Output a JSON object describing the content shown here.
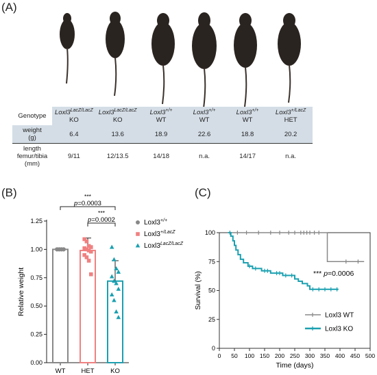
{
  "panels": {
    "a": "(A)",
    "b": "(B)",
    "c": "(C)"
  },
  "colors": {
    "wt": "#888888",
    "het": "#f08080",
    "ko": "#1aa0b0",
    "table_header": "#d4dde6",
    "mouse_body": "#2a2420"
  },
  "table": {
    "corner": "Genotype",
    "columns": [
      {
        "gene": "Loxl3",
        "sup": "LacZ/LacZ",
        "label": "KO"
      },
      {
        "gene": "Loxl3",
        "sup": "LacZ/LacZ",
        "label": "KO"
      },
      {
        "gene": "Loxl3",
        "sup": "+/+",
        "label": "WT"
      },
      {
        "gene": "Loxl3",
        "sup": "+/+",
        "label": "WT"
      },
      {
        "gene": "Loxl3",
        "sup": "+/+",
        "label": "WT"
      },
      {
        "gene": "Loxl3",
        "sup": "+/LacZ",
        "label": "HET"
      }
    ],
    "weight": {
      "label_1": "weight",
      "label_2": "(g)",
      "values": [
        "6.4",
        "13.6",
        "18.9",
        "22.6",
        "18.8",
        "20.2"
      ]
    },
    "length": {
      "label_1": "length",
      "label_2": "femur/tibia",
      "label_3": "(mm)",
      "values": [
        "9/11",
        "12/13.5",
        "14/18",
        "n.a.",
        "14/17",
        "n.a."
      ]
    }
  },
  "chart_data": [
    {
      "type": "bar",
      "ylabel": "Relative weight",
      "ylim": [
        0,
        1.25
      ],
      "yticks": [
        "0.00",
        "0.25",
        "0.50",
        "0.75",
        "1.00",
        "1.25"
      ],
      "categories": [
        "WT",
        "HET",
        "KO"
      ],
      "means": [
        1.0,
        0.99,
        0.72
      ],
      "sd": [
        0.0,
        0.11,
        0.18
      ],
      "points": {
        "WT": [
          1.0,
          1.0,
          1.0,
          1.0,
          1.0,
          1.0,
          1.0,
          1.0,
          1.0,
          1.0,
          1.0,
          1.0
        ],
        "HET": [
          1.09,
          1.07,
          1.03,
          1.02,
          1.01,
          1.0,
          0.99,
          0.98,
          0.95,
          0.93,
          0.9,
          0.78
        ],
        "KO": [
          1.02,
          0.91,
          0.83,
          0.8,
          0.76,
          0.72,
          0.7,
          0.65,
          0.6,
          0.55,
          0.45,
          0.4
        ]
      },
      "legend": [
        {
          "gene": "Loxl3",
          "sup": "+/+"
        },
        {
          "gene": "Loxl3",
          "sup": "+/LacZ"
        },
        {
          "gene": "Loxl3",
          "sup": "LacZ/LacZ"
        }
      ],
      "annotations": [
        {
          "stars": "***",
          "p_label": "p",
          "p_value": "=0.0003",
          "from": "WT",
          "to": "KO"
        },
        {
          "stars": "***",
          "p_label": "p",
          "p_value": "=0.0002",
          "from": "HET",
          "to": "KO"
        }
      ]
    },
    {
      "type": "line",
      "xlabel": "Time (days)",
      "ylabel": "Survival (%)",
      "xlim": [
        0,
        500
      ],
      "ylim": [
        0,
        100
      ],
      "xticks": [
        "0",
        "50",
        "100",
        "150",
        "200",
        "250",
        "300",
        "350",
        "400",
        "450",
        "500"
      ],
      "yticks": [
        "0",
        "25",
        "50",
        "75",
        "100"
      ],
      "series": [
        {
          "name": "Loxl3 WT",
          "steps": [
            [
              30,
              100
            ],
            [
              358,
              100
            ],
            [
              358,
              75
            ],
            [
              480,
              75
            ]
          ],
          "censors": [
            [
              60,
              100
            ],
            [
              90,
              100
            ],
            [
              130,
              100
            ],
            [
              170,
              100
            ],
            [
              200,
              100
            ],
            [
              230,
              100
            ],
            [
              250,
              100
            ],
            [
              270,
              100
            ],
            [
              280,
              100
            ],
            [
              290,
              100
            ],
            [
              300,
              100
            ],
            [
              315,
              100
            ],
            [
              330,
              100
            ],
            [
              420,
              75
            ],
            [
              460,
              75
            ]
          ]
        },
        {
          "name": "Loxl3 KO",
          "steps": [
            [
              30,
              100
            ],
            [
              38,
              100
            ],
            [
              38,
              97
            ],
            [
              45,
              97
            ],
            [
              45,
              93
            ],
            [
              50,
              93
            ],
            [
              50,
              89
            ],
            [
              55,
              89
            ],
            [
              55,
              85
            ],
            [
              62,
              85
            ],
            [
              62,
              81
            ],
            [
              70,
              81
            ],
            [
              70,
              77
            ],
            [
              80,
              77
            ],
            [
              80,
              74
            ],
            [
              95,
              74
            ],
            [
              95,
              71
            ],
            [
              110,
              71
            ],
            [
              110,
              69
            ],
            [
              140,
              69
            ],
            [
              140,
              67
            ],
            [
              170,
              67
            ],
            [
              170,
              65
            ],
            [
              210,
              65
            ],
            [
              210,
              63
            ],
            [
              250,
              63
            ],
            [
              250,
              60
            ],
            [
              262,
              60
            ],
            [
              262,
              58
            ],
            [
              275,
              58
            ],
            [
              275,
              56
            ],
            [
              292,
              56
            ],
            [
              292,
              54
            ],
            [
              300,
              54
            ],
            [
              300,
              51
            ],
            [
              395,
              51
            ]
          ],
          "censors": [
            [
              35,
              100
            ],
            [
              100,
              71
            ],
            [
              120,
              69
            ],
            [
              150,
              67
            ],
            [
              160,
              67
            ],
            [
              190,
              65
            ],
            [
              200,
              65
            ],
            [
              220,
              63
            ],
            [
              240,
              63
            ],
            [
              310,
              51
            ],
            [
              330,
              51
            ],
            [
              350,
              51
            ],
            [
              370,
              51
            ],
            [
              390,
              51
            ]
          ]
        }
      ],
      "annotation": {
        "stars": "***",
        "p_label": "p",
        "p_value": "=0.0006"
      }
    }
  ]
}
